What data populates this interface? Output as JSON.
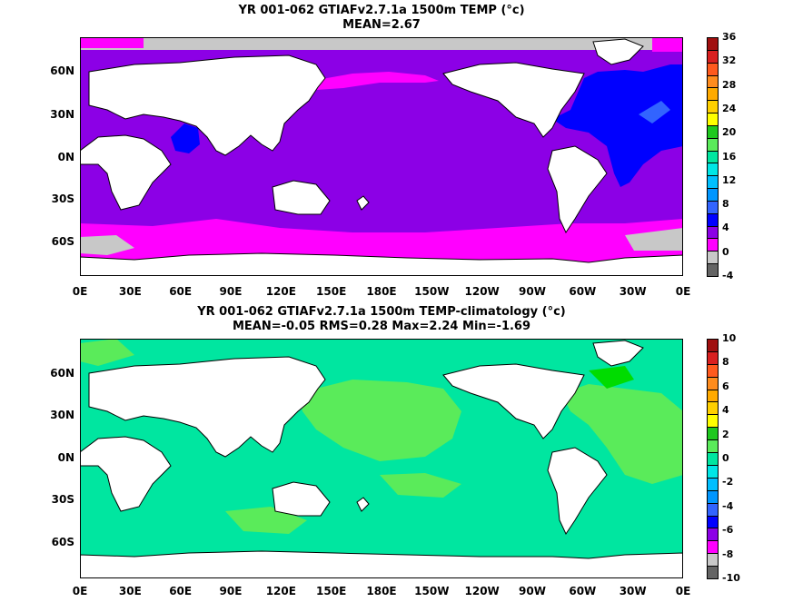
{
  "panel1": {
    "title_line1": "YR 001-062 GTIAFv2.7.1a 1500m TEMP (°c)",
    "title_line2": "MEAN=2.67",
    "colorbar_labels": [
      "36",
      "32",
      "28",
      "24",
      "20",
      "16",
      "12",
      "8",
      "4",
      "0",
      "-4"
    ],
    "colorbar_colors": [
      "#a01010",
      "#d92020",
      "#ff5a1e",
      "#ff8c1e",
      "#ffaa00",
      "#ffd000",
      "#ffff00",
      "#1ec81e",
      "#5aeb5a",
      "#00e6a0",
      "#00e6e6",
      "#00bfff",
      "#0096ff",
      "#3264ff",
      "#0000ff",
      "#8c00e6",
      "#ff00ff",
      "#c8c8c8",
      "#646464"
    ],
    "ocean_color": "#8c00e6"
  },
  "panel2": {
    "title_line1": "YR 001-062 GTIAFv2.7.1a 1500m TEMP-climatology (°c)",
    "title_line2": "MEAN=-0.05   RMS=0.28   Max=2.24   Min=-1.69",
    "colorbar_labels": [
      "10",
      "8",
      "6",
      "4",
      "2",
      "0",
      "-2",
      "-4",
      "-6",
      "-8",
      "-10"
    ],
    "colorbar_colors": [
      "#a01010",
      "#d92020",
      "#ff5a1e",
      "#ff8c1e",
      "#ffaa00",
      "#ffd000",
      "#ffff00",
      "#1ec81e",
      "#5aeb5a",
      "#00e6a0",
      "#00e6e6",
      "#00bfff",
      "#0096ff",
      "#3264ff",
      "#0000ff",
      "#8c00e6",
      "#ff00ff",
      "#c8c8c8",
      "#646464"
    ],
    "ocean_color": "#5aeb5a"
  },
  "axes": {
    "lat_labels": [
      "60N",
      "30N",
      "0N",
      "30S",
      "60S"
    ],
    "lon_labels": [
      "0E",
      "30E",
      "60E",
      "90E",
      "120E",
      "150E",
      "180E",
      "150W",
      "120W",
      "90W",
      "60W",
      "30W",
      "0E"
    ]
  },
  "legend_colors": {
    "land": "#ffffff",
    "ice": "#c8c8c8",
    "magenta": "#ff00ff",
    "purple": "#8c00e6",
    "blue": "#0000ff",
    "midblue": "#3264ff",
    "green": "#00e6a0",
    "lightgreen": "#5aeb5a",
    "brightgreen": "#00dc00"
  }
}
